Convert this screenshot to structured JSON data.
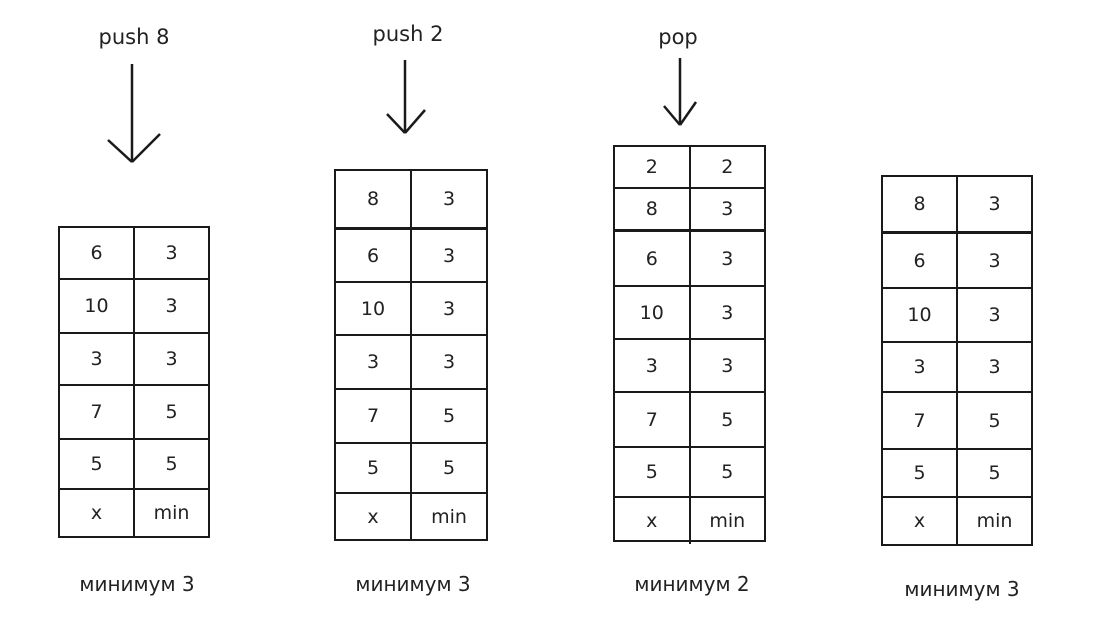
{
  "panels": [
    {
      "operation": "push 8",
      "rows": [
        [
          "6",
          "3"
        ],
        [
          "10",
          "3"
        ],
        [
          "3",
          "3"
        ],
        [
          "7",
          "5"
        ],
        [
          "5",
          "5"
        ],
        [
          "x",
          "min"
        ]
      ],
      "caption": "минимум 3"
    },
    {
      "operation": "push 2",
      "rows": [
        [
          "8",
          "3"
        ],
        [
          "6",
          "3"
        ],
        [
          "10",
          "3"
        ],
        [
          "3",
          "3"
        ],
        [
          "7",
          "5"
        ],
        [
          "5",
          "5"
        ],
        [
          "x",
          "min"
        ]
      ],
      "caption": "минимум 3"
    },
    {
      "operation": "pop",
      "rows": [
        [
          "2",
          "2"
        ],
        [
          "8",
          "3"
        ],
        [
          "6",
          "3"
        ],
        [
          "10",
          "3"
        ],
        [
          "3",
          "3"
        ],
        [
          "7",
          "5"
        ],
        [
          "5",
          "5"
        ],
        [
          "x",
          "min"
        ]
      ],
      "caption": "минимум 2"
    },
    {
      "operation": "",
      "rows": [
        [
          "8",
          "3"
        ],
        [
          "6",
          "3"
        ],
        [
          "10",
          "3"
        ],
        [
          "3",
          "3"
        ],
        [
          "7",
          "5"
        ],
        [
          "5",
          "5"
        ],
        [
          "x",
          "min"
        ]
      ],
      "caption": "минимум 3"
    }
  ]
}
